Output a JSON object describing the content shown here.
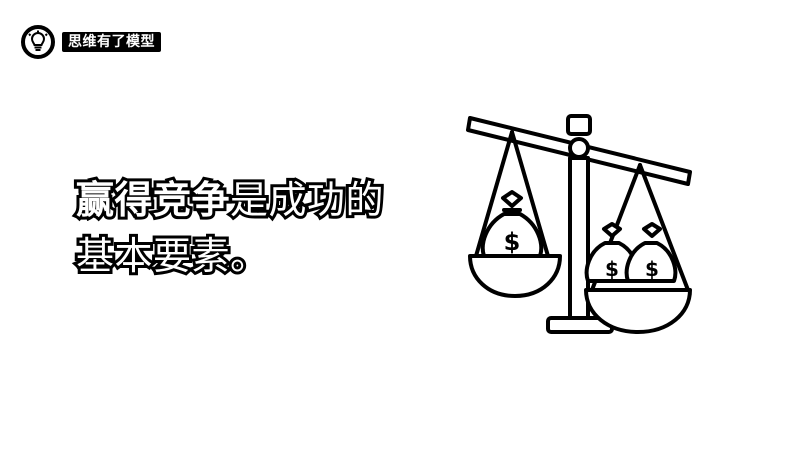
{
  "brand": {
    "logo_icon": "lightbulb-brain-icon",
    "name": "思维有了模型"
  },
  "headline": {
    "line1_bold": "赢得竞争",
    "line1_rest": "是成功的",
    "line2": "基本要素。"
  },
  "illustration": {
    "icon": "balance-scale-money-bags-icon",
    "bag_symbol": "$"
  }
}
